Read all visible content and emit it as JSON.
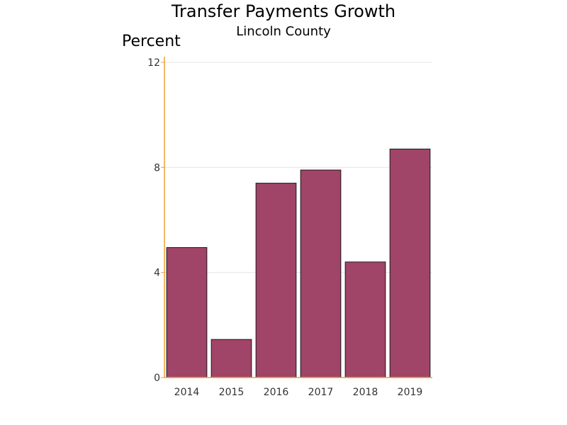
{
  "chart_data": {
    "type": "bar",
    "title": "Transfer Payments Growth",
    "subtitle": "Lincoln County",
    "ylabel": "Percent",
    "xlabel": "",
    "categories": [
      "2014",
      "2015",
      "2016",
      "2017",
      "2018",
      "2019"
    ],
    "values": [
      4.95,
      1.45,
      7.4,
      7.9,
      4.4,
      8.7
    ],
    "ylim": [
      0,
      12
    ],
    "yticks": [
      "0",
      "4",
      "8",
      "12"
    ],
    "grid": true,
    "legend": "none",
    "colors": {
      "bar_fill": "#a04468",
      "bar_stroke": "#1a1a1a",
      "axis": "#f0a030",
      "grid": "#e6e6e6"
    }
  }
}
